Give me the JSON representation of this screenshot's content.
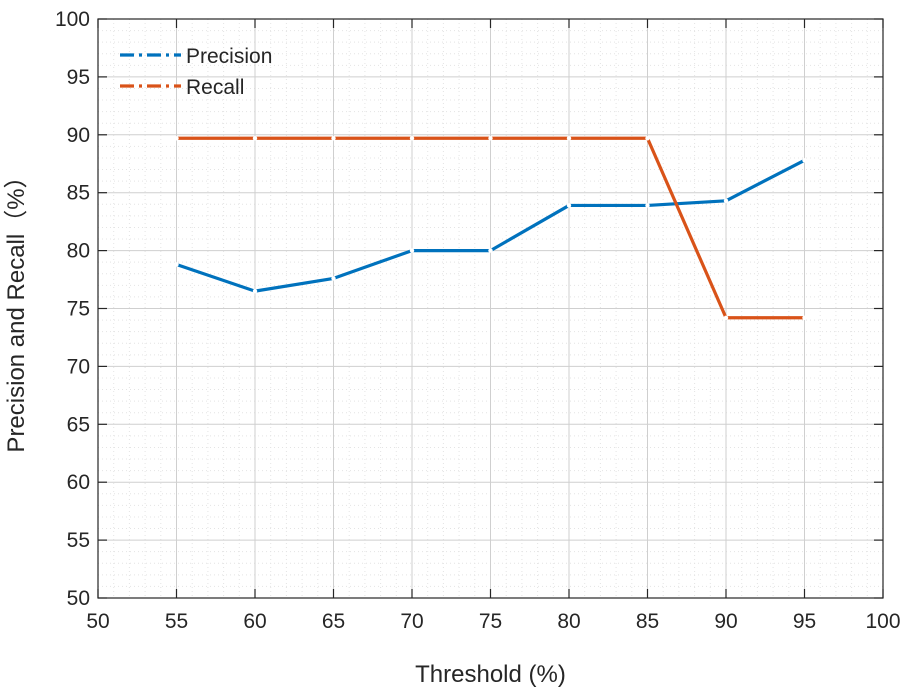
{
  "chart_data": {
    "type": "line",
    "title": "",
    "xlabel": "Threshold (%)",
    "ylabel": "Precision and Recall（%）",
    "xlim": [
      50,
      100
    ],
    "ylim": [
      50,
      100
    ],
    "xticks": [
      50,
      55,
      60,
      65,
      70,
      75,
      80,
      85,
      90,
      95,
      100
    ],
    "yticks": [
      50,
      55,
      60,
      65,
      70,
      75,
      80,
      85,
      90,
      95,
      100
    ],
    "grid": true,
    "legend_position": "top-left",
    "x": [
      55,
      60,
      65,
      70,
      75,
      80,
      85,
      90,
      95
    ],
    "series": [
      {
        "name": "Precision",
        "color": "#0072BD",
        "values": [
          78.8,
          76.5,
          77.6,
          80.0,
          80.0,
          83.9,
          83.9,
          84.3,
          87.8
        ]
      },
      {
        "name": "Recall",
        "color": "#D95319",
        "values": [
          89.7,
          89.7,
          89.7,
          89.7,
          89.7,
          89.7,
          89.7,
          74.2,
          74.2
        ]
      }
    ]
  }
}
